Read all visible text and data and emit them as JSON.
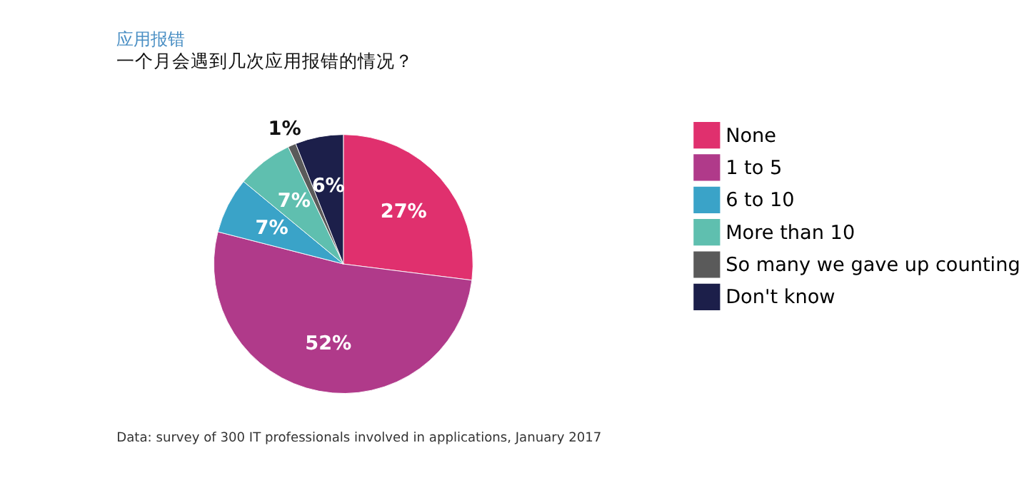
{
  "chart_data": {
    "type": "pie",
    "title": "应用报错",
    "subtitle": "一个月会遇到几次应用报错的情况？",
    "categories": [
      "None",
      "1 to 5",
      "6 to 10",
      "More than 10",
      "So many we gave up counting",
      "Don't know"
    ],
    "values": [
      27,
      52,
      7,
      7,
      1,
      6
    ],
    "colors": [
      "#e0306e",
      "#b03a8a",
      "#3aa3c8",
      "#5fbfaf",
      "#5a5a5a",
      "#1c1f4a"
    ],
    "value_labels": [
      "27%",
      "52%",
      "7%",
      "7%",
      "1%",
      "6%"
    ],
    "legend": "right",
    "annotations": [
      "Data: survey of 300 IT professionals involved in applications, January 2017"
    ]
  }
}
